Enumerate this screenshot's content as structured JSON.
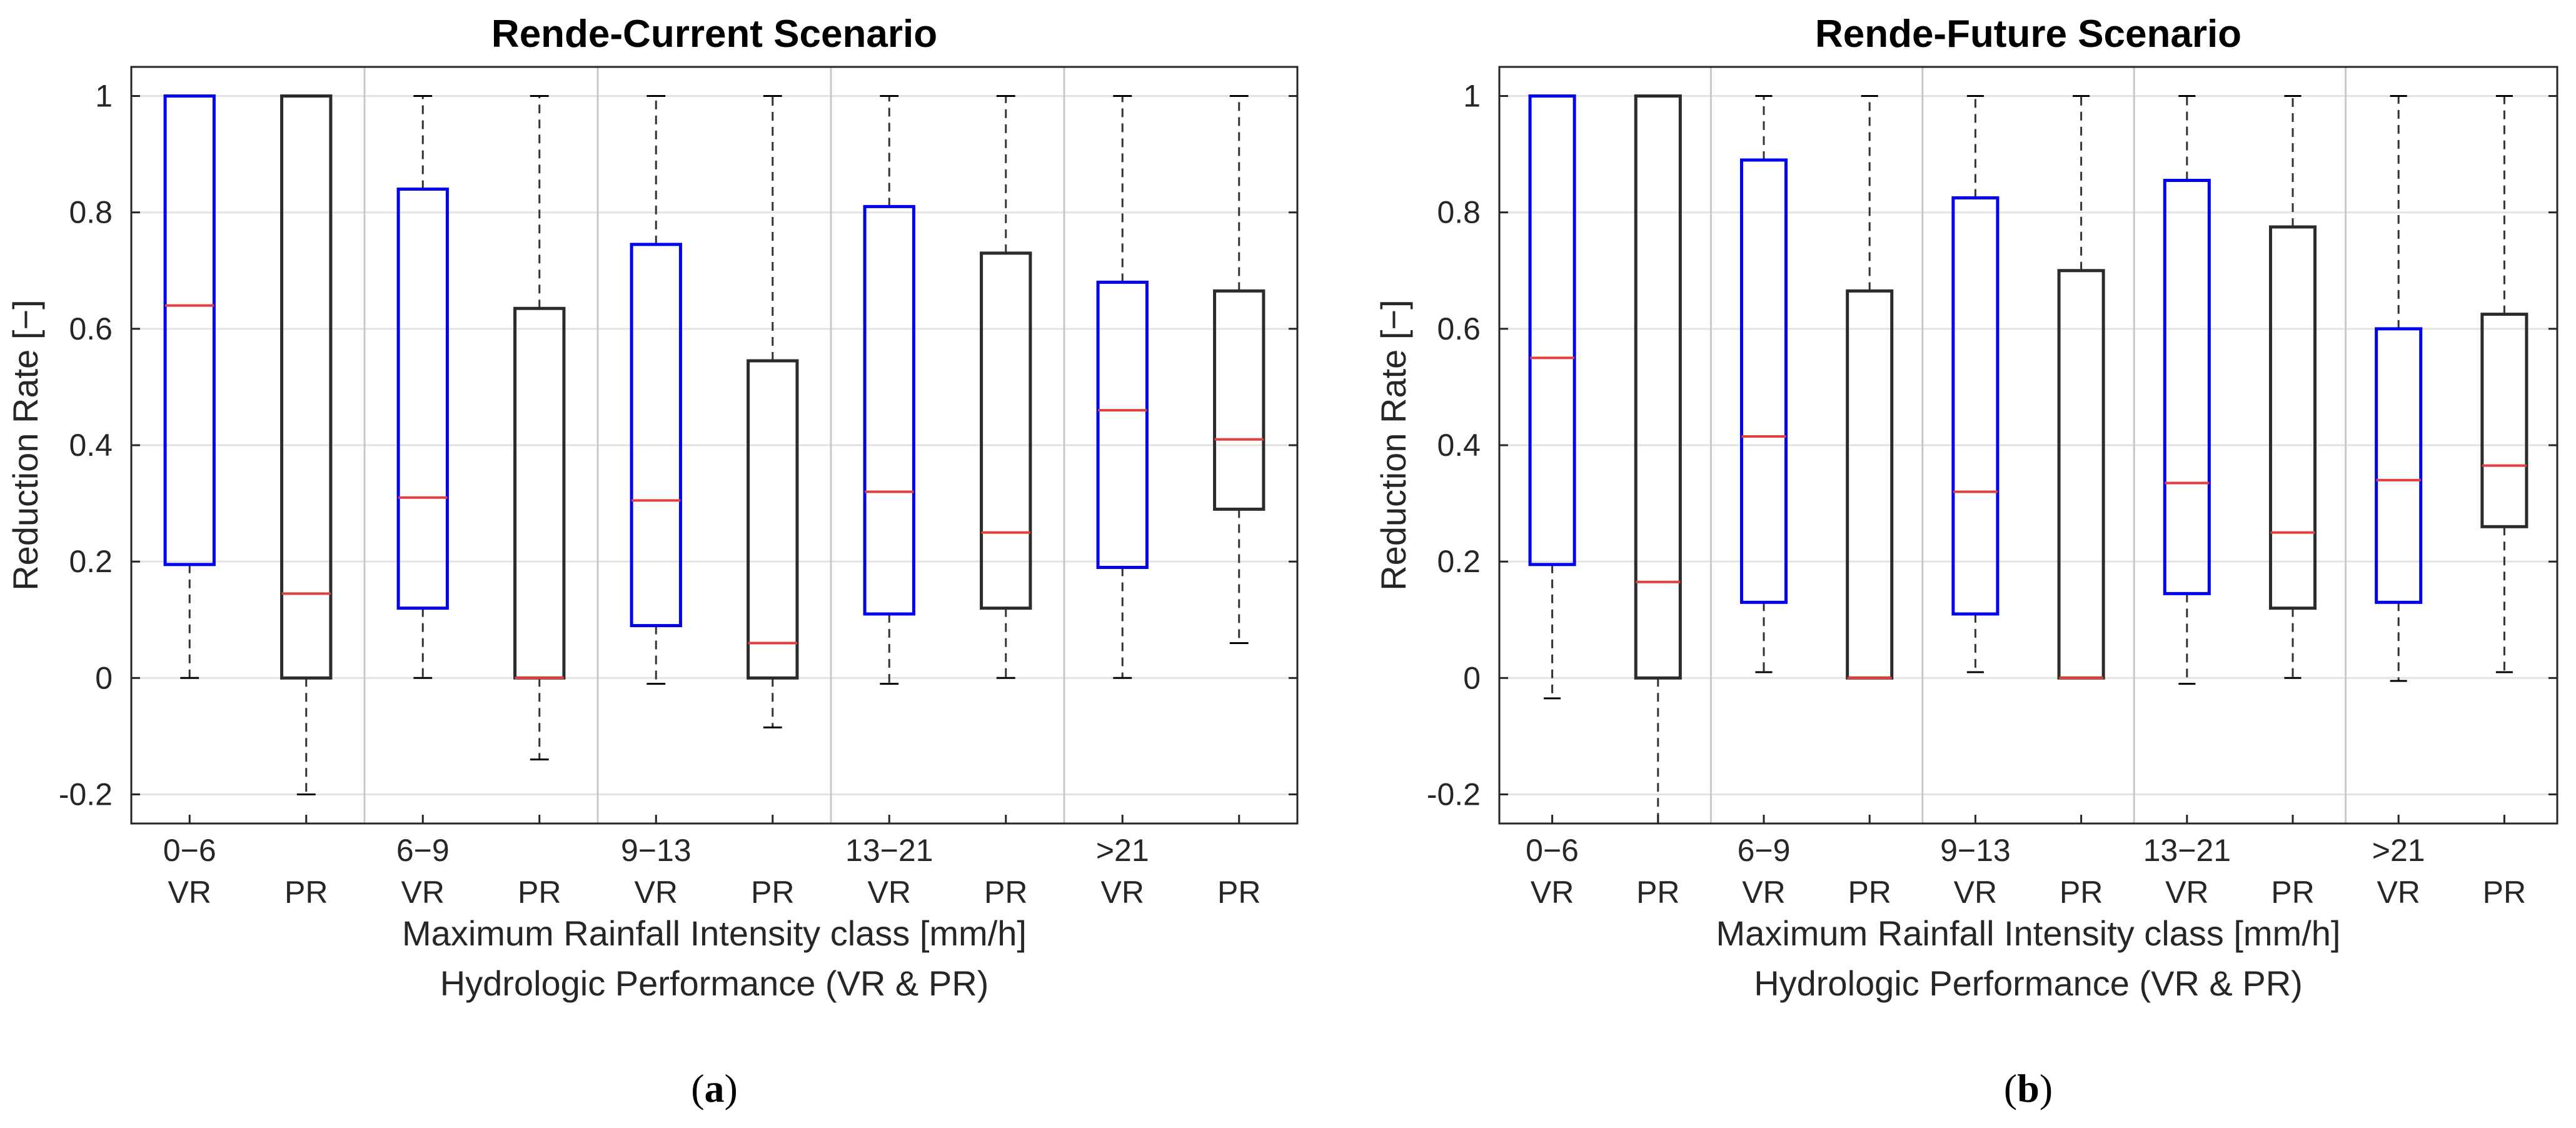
{
  "chart_data": [
    {
      "type": "box",
      "title": "Rende-Current Scenario",
      "ylabel": "Reduction Rate [−]",
      "xlabel_lines": [
        "Maximum Rainfall Intensity class [mm/h]",
        "Hydrologic Performance (VR & PR)"
      ],
      "panel_label_parts": [
        "(",
        "a",
        ")"
      ],
      "ylim": [
        -0.25,
        1.05
      ],
      "yticks": [
        -0.2,
        0,
        0.2,
        0.4,
        0.6,
        0.8,
        1
      ],
      "ytick_labels": [
        "-0.2",
        "0",
        "0.2",
        "0.4",
        "0.6",
        "0.8",
        "1"
      ],
      "grid": true,
      "groups": [
        {
          "label": "0−6",
          "boxes": [
            {
              "label": "VR",
              "whisker_low": 0,
              "q1": 0.195,
              "median": 0.64,
              "q3": 1,
              "whisker_high": 1
            },
            {
              "label": "PR",
              "whisker_low": -0.2,
              "q1": 0,
              "median": 0.145,
              "q3": 1,
              "whisker_high": 1
            }
          ]
        },
        {
          "label": "6−9",
          "boxes": [
            {
              "label": "VR",
              "whisker_low": 0,
              "q1": 0.12,
              "median": 0.31,
              "q3": 0.84,
              "whisker_high": 1
            },
            {
              "label": "PR",
              "whisker_low": -0.14,
              "q1": 0,
              "median": 0,
              "q3": 0.635,
              "whisker_high": 1
            }
          ]
        },
        {
          "label": "9−13",
          "boxes": [
            {
              "label": "VR",
              "whisker_low": -0.01,
              "q1": 0.09,
              "median": 0.305,
              "q3": 0.745,
              "whisker_high": 1
            },
            {
              "label": "PR",
              "whisker_low": -0.085,
              "q1": 0,
              "median": 0.06,
              "q3": 0.545,
              "whisker_high": 1
            }
          ]
        },
        {
          "label": "13−21",
          "boxes": [
            {
              "label": "VR",
              "whisker_low": -0.01,
              "q1": 0.11,
              "median": 0.32,
              "q3": 0.81,
              "whisker_high": 1
            },
            {
              "label": "PR",
              "whisker_low": 0,
              "q1": 0.12,
              "median": 0.25,
              "q3": 0.73,
              "whisker_high": 1
            }
          ]
        },
        {
          "label": ">21",
          "boxes": [
            {
              "label": "VR",
              "whisker_low": 0,
              "q1": 0.19,
              "median": 0.46,
              "q3": 0.68,
              "whisker_high": 1
            },
            {
              "label": "PR",
              "whisker_low": 0.06,
              "q1": 0.29,
              "median": 0.41,
              "q3": 0.665,
              "whisker_high": 1
            }
          ]
        }
      ]
    },
    {
      "type": "box",
      "title": "Rende-Future Scenario",
      "ylabel": "Reduction Rate [−]",
      "xlabel_lines": [
        "Maximum Rainfall Intensity class [mm/h]",
        "Hydrologic Performance (VR & PR)"
      ],
      "panel_label_parts": [
        "(",
        "b",
        ")"
      ],
      "ylim": [
        -0.25,
        1.05
      ],
      "yticks": [
        -0.2,
        0,
        0.2,
        0.4,
        0.6,
        0.8,
        1
      ],
      "ytick_labels": [
        "-0.2",
        "0",
        "0.2",
        "0.4",
        "0.6",
        "0.8",
        "1"
      ],
      "grid": true,
      "groups": [
        {
          "label": "0−6",
          "boxes": [
            {
              "label": "VR",
              "whisker_low": -0.035,
              "q1": 0.195,
              "median": 0.55,
              "q3": 1,
              "whisker_high": 1
            },
            {
              "label": "PR",
              "whisker_low": -0.25,
              "q1": 0,
              "median": 0.165,
              "q3": 1,
              "whisker_high": 1
            }
          ]
        },
        {
          "label": "6−9",
          "boxes": [
            {
              "label": "VR",
              "whisker_low": 0.01,
              "q1": 0.13,
              "median": 0.415,
              "q3": 0.89,
              "whisker_high": 1
            },
            {
              "label": "PR",
              "whisker_low": 0,
              "q1": 0,
              "median": 0,
              "q3": 0.665,
              "whisker_high": 1
            }
          ]
        },
        {
          "label": "9−13",
          "boxes": [
            {
              "label": "VR",
              "whisker_low": 0.01,
              "q1": 0.11,
              "median": 0.32,
              "q3": 0.825,
              "whisker_high": 1
            },
            {
              "label": "PR",
              "whisker_low": 0,
              "q1": 0,
              "median": 0,
              "q3": 0.7,
              "whisker_high": 1
            }
          ]
        },
        {
          "label": "13−21",
          "boxes": [
            {
              "label": "VR",
              "whisker_low": -0.01,
              "q1": 0.145,
              "median": 0.335,
              "q3": 0.855,
              "whisker_high": 1
            },
            {
              "label": "PR",
              "whisker_low": 0,
              "q1": 0.12,
              "median": 0.25,
              "q3": 0.775,
              "whisker_high": 1
            }
          ]
        },
        {
          "label": ">21",
          "boxes": [
            {
              "label": "VR",
              "whisker_low": -0.005,
              "q1": 0.13,
              "median": 0.34,
              "q3": 0.6,
              "whisker_high": 1
            },
            {
              "label": "PR",
              "whisker_low": 0.01,
              "q1": 0.26,
              "median": 0.365,
              "q3": 0.625,
              "whisker_high": 1
            }
          ]
        }
      ]
    }
  ],
  "colors": {
    "vr_box": "#0000ee",
    "pr_box": "#2b2b2b",
    "median": "#e0413e",
    "whisker": "#333333",
    "grid": "#e3e3e3",
    "separator": "#c8c8c8",
    "axes": "#262626"
  }
}
